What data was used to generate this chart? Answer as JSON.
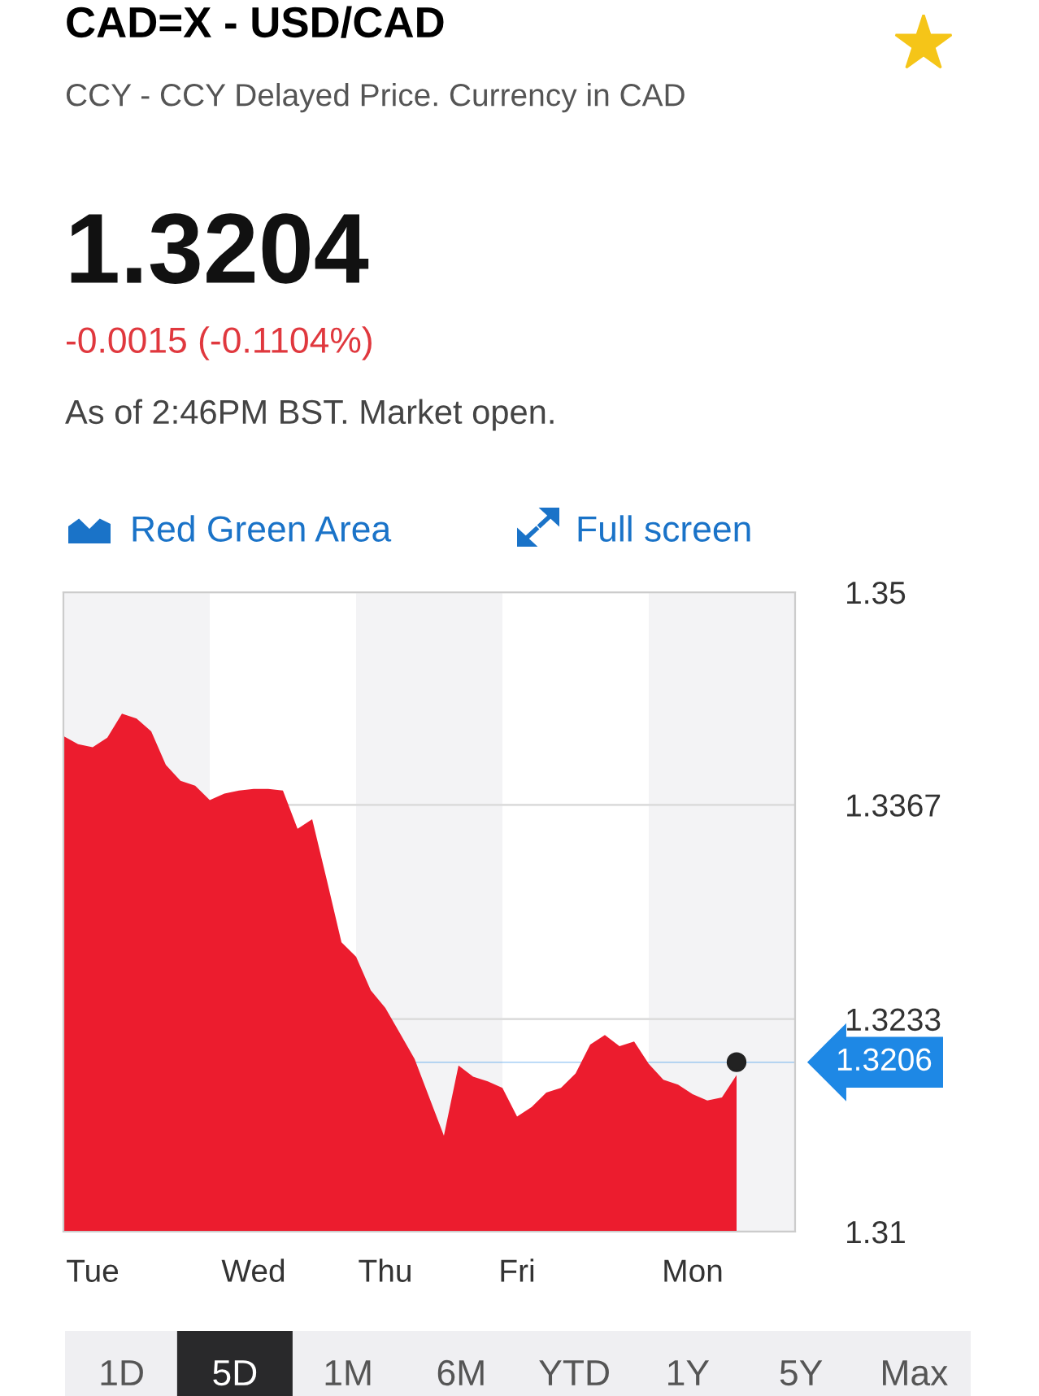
{
  "chart_data": {
    "type": "area",
    "title": "CAD=X - USD/CAD",
    "subtitle": "CCY - CCY Delayed Price. Currency in CAD",
    "annotations": [
      "1.3204",
      "-0.0015 (-0.1104%)",
      "As of 2:46PM BST. Market open.",
      "Red Green Area",
      "Full screen",
      "1D",
      "5D",
      "1M",
      "6M",
      "YTD",
      "1Y",
      "5Y",
      "Max"
    ],
    "categories": [
      null,
      null,
      "Tue",
      null,
      null,
      null,
      null,
      null,
      null,
      null,
      null,
      null,
      null,
      "Wed",
      null,
      null,
      null,
      null,
      null,
      null,
      null,
      null,
      "Thu",
      null,
      null,
      null,
      null,
      null,
      null,
      null,
      null,
      "Fri",
      null,
      null,
      null,
      null,
      null,
      null,
      null,
      null,
      null,
      null,
      null,
      "Mon",
      null,
      null,
      null,
      null,
      null,
      null,
      null
    ],
    "series": [
      {
        "color": "#ec1c2e",
        "values": [
          1.341,
          1.3405,
          1.3403,
          1.3409,
          1.3424,
          1.3421,
          1.3413,
          1.3392,
          1.3382,
          1.3379,
          1.337,
          1.3374,
          1.3376,
          1.3377,
          1.3377,
          1.3376,
          1.3352,
          1.3358,
          1.332,
          1.3281,
          1.3272,
          1.3251,
          1.324,
          1.3224,
          1.3208,
          1.3184,
          1.316,
          1.3204,
          1.3197,
          1.3194,
          1.319,
          1.3172,
          1.3178,
          1.3187,
          1.319,
          1.3199,
          1.3217,
          1.3223,
          1.3216,
          1.3219,
          1.3205,
          1.3195,
          1.3192,
          1.3186,
          1.3182,
          1.3184,
          1.3198,
          null,
          null,
          null,
          null
        ]
      },
      {
        "type": "scatter",
        "color": "#222222",
        "marker": "circle",
        "values": [
          null,
          null,
          null,
          null,
          null,
          null,
          null,
          null,
          null,
          null,
          null,
          null,
          null,
          null,
          null,
          null,
          null,
          null,
          null,
          null,
          null,
          null,
          null,
          null,
          null,
          null,
          null,
          null,
          null,
          null,
          null,
          null,
          null,
          null,
          null,
          null,
          null,
          null,
          null,
          null,
          null,
          null,
          null,
          null,
          null,
          null,
          1.3206,
          null,
          null,
          null,
          null
        ]
      }
    ],
    "ylim": [
      1.31,
      1.35
    ],
    "yticks": [
      1.31,
      1.3233,
      1.3367,
      1.35
    ],
    "grid": "y",
    "ref_lines": [
      {
        "axis": "y",
        "value": 1.3206,
        "label": "1.3206",
        "color": "#1e88e5"
      }
    ]
  }
}
